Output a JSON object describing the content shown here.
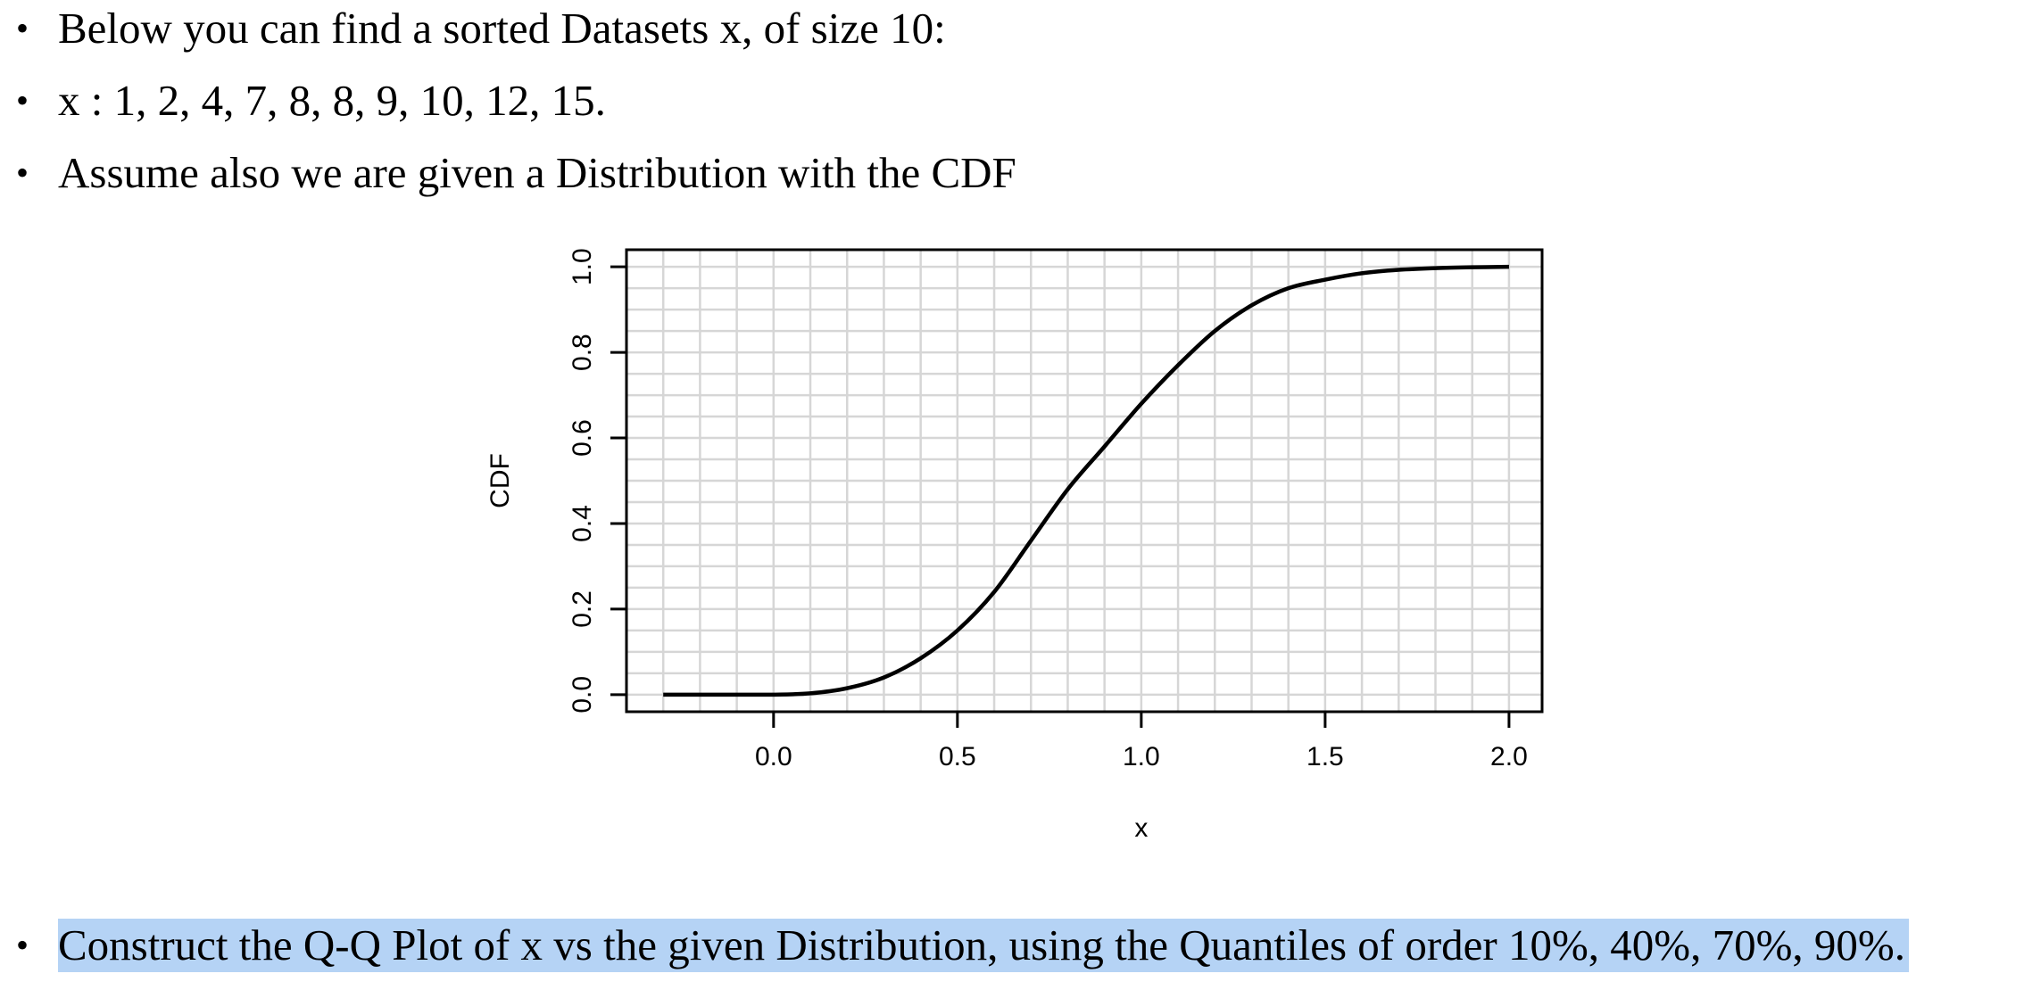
{
  "document": {
    "bullets": [
      "Below you can find a sorted Datasets x, of size 10:",
      "x : 1, 2, 4, 7, 8, 8, 9, 10, 12, 15.",
      "Assume also we are given a Distribution with the CDF",
      "Construct the Q-Q Plot of x vs the given Distribution, using the Quantiles of order 10%, 40%, 70%, 90%."
    ],
    "bullet_symbol": "•",
    "highlight_color": "#b5d3f5"
  },
  "chart_data": {
    "type": "line",
    "title": "",
    "xlabel": "x",
    "ylabel": "CDF",
    "xlim": [
      -0.4,
      2.09
    ],
    "ylim": [
      -0.04,
      1.04
    ],
    "x_ticks": [
      0.0,
      0.5,
      1.0,
      1.5,
      2.0
    ],
    "x_tick_labels": [
      "0.0",
      "0.5",
      "1.0",
      "1.5",
      "2.0"
    ],
    "y_ticks": [
      0.0,
      0.2,
      0.4,
      0.6,
      0.8,
      1.0
    ],
    "y_tick_labels": [
      "0.0",
      "0.2",
      "0.4",
      "0.6",
      "0.8",
      "1.0"
    ],
    "grid": true,
    "x_grid_step": 0.1,
    "y_grid_step": 0.05,
    "grid_color": "#d6d6d6",
    "line_color": "#000000",
    "series": [
      {
        "x": [
          -0.3,
          -0.2,
          -0.1,
          0.0,
          0.1,
          0.2,
          0.3,
          0.4,
          0.5,
          0.6,
          0.7,
          0.8,
          0.9,
          1.0,
          1.1,
          1.2,
          1.3,
          1.4,
          1.5,
          1.6,
          1.7,
          1.8,
          1.9,
          2.0
        ],
        "y": [
          0.0,
          0.0,
          0.0,
          0.0,
          0.003,
          0.015,
          0.04,
          0.085,
          0.15,
          0.24,
          0.36,
          0.48,
          0.58,
          0.68,
          0.77,
          0.85,
          0.91,
          0.95,
          0.97,
          0.985,
          0.993,
          0.997,
          0.999,
          1.0
        ]
      }
    ]
  }
}
